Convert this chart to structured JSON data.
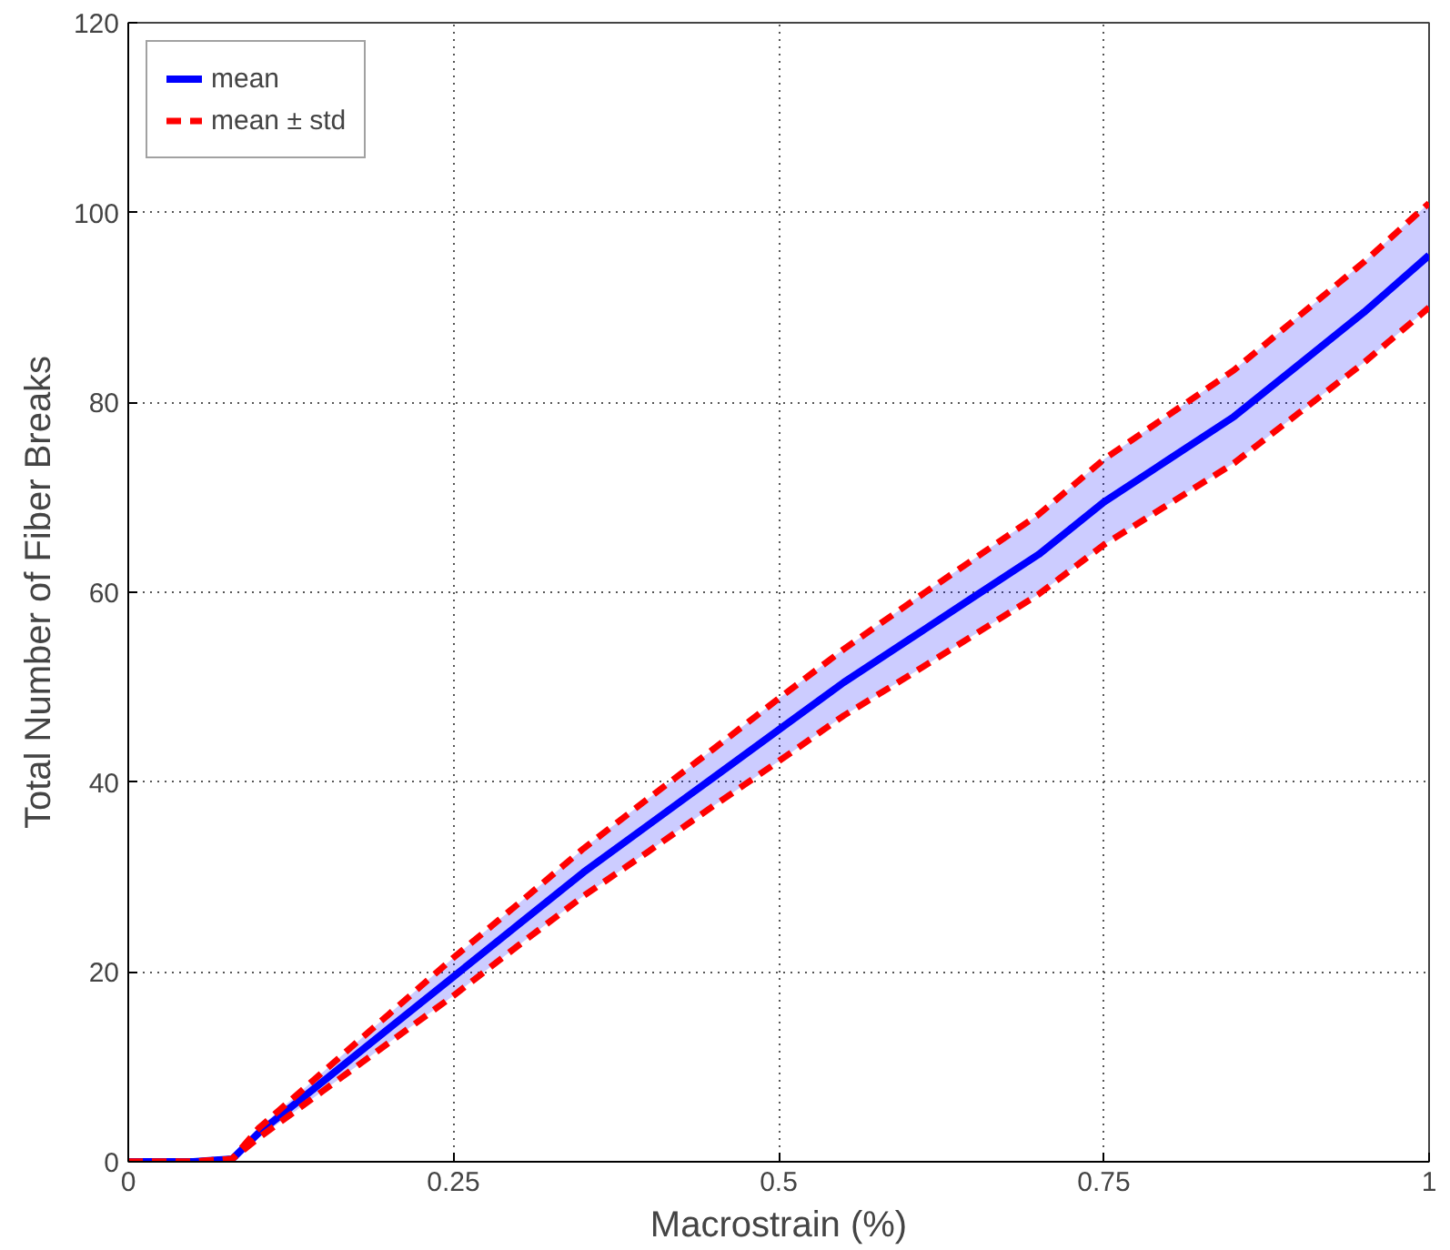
{
  "chart_data": {
    "type": "line",
    "xlabel": "Macrostrain (%)",
    "ylabel": "Total Number of Fiber Breaks",
    "x": [
      0,
      0.05,
      0.08,
      0.1,
      0.15,
      0.2,
      0.25,
      0.3,
      0.35,
      0.4,
      0.45,
      0.5,
      0.55,
      0.6,
      0.65,
      0.7,
      0.75,
      0.8,
      0.85,
      0.9,
      0.95,
      1.0
    ],
    "series": [
      {
        "name": "mean",
        "color": "#0000ff",
        "line_style": "solid",
        "values": [
          0,
          0,
          0.3,
          3,
          8.5,
          14,
          19.5,
          25,
          30.5,
          35.5,
          40.5,
          45.5,
          50.5,
          55,
          59.5,
          64,
          69.5,
          74,
          78.5,
          84,
          89.5,
          95.5
        ],
        "lower": [
          0,
          0,
          0.3,
          2.5,
          7.5,
          12.5,
          17.5,
          22.8,
          28,
          32.7,
          37.5,
          42.2,
          47,
          51.2,
          55.5,
          59.8,
          65,
          69.3,
          73.6,
          78.9,
          84.2,
          90
        ],
        "upper": [
          0,
          0,
          0.3,
          3.5,
          9.5,
          15.5,
          21.5,
          27.2,
          33,
          38.3,
          43.5,
          48.8,
          54,
          58.8,
          63.5,
          68.2,
          74,
          78.7,
          83.4,
          89.1,
          94.8,
          101
        ]
      },
      {
        "name": "mean ± std",
        "color": "#ff0000",
        "line_style": "dashed",
        "values": [
          0,
          0,
          0.3,
          3.5,
          9.5,
          15.5,
          21.5,
          27.2,
          33,
          38.3,
          43.5,
          48.8,
          54,
          58.8,
          63.5,
          68.2,
          74,
          78.7,
          83.4,
          89.1,
          94.8,
          101
        ]
      },
      {
        "color": "#ff0000",
        "line_style": "dashed",
        "values": [
          0,
          0,
          0.3,
          2.5,
          7.5,
          12.5,
          17.5,
          22.8,
          28,
          32.7,
          37.5,
          42.2,
          47,
          51.2,
          55.5,
          59.8,
          65,
          69.3,
          73.6,
          78.9,
          84.2,
          90
        ]
      }
    ],
    "xlim": [
      0,
      1
    ],
    "xticks": [
      0,
      0.25,
      0.5,
      0.75,
      1
    ],
    "ylim": [
      0,
      120
    ],
    "yticks": [
      0,
      20,
      40,
      60,
      80,
      100,
      120
    ],
    "grid": true,
    "legend": "top left"
  }
}
